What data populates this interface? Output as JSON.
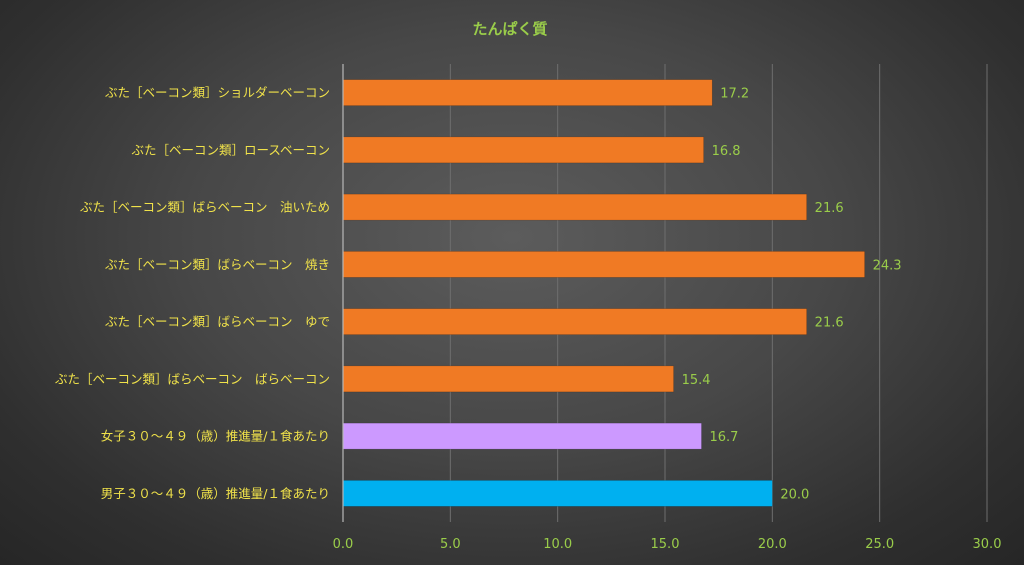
{
  "chart_data": {
    "type": "bar",
    "orientation": "horizontal",
    "title": "たんぱく質",
    "categories": [
      "ぶた［ベーコン類］ショルダーベーコン",
      "ぶた［ベーコン類］ロースベーコン",
      "ぶた［ベーコン類］ばらベーコン　油いため",
      "ぶた［ベーコン類］ばらベーコン　焼き",
      "ぶた［ベーコン類］ばらベーコン　ゆで",
      "ぶた［ベーコン類］ばらベーコン　ばらベーコン",
      "女子３０～４９（歳）推進量/１食あたり",
      "男子３０～４９（歳）推進量/１食あたり"
    ],
    "values": [
      17.2,
      16.8,
      21.6,
      24.3,
      21.6,
      15.4,
      16.7,
      20.0
    ],
    "value_labels": [
      "17.2",
      "16.8",
      "21.6",
      "24.3",
      "21.6",
      "15.4",
      "16.7",
      "20.0"
    ],
    "bar_colors": [
      "#f07a24",
      "#f07a24",
      "#f07a24",
      "#f07a24",
      "#f07a24",
      "#f07a24",
      "#cc99ff",
      "#00b0f0"
    ],
    "xlim": [
      0,
      30
    ],
    "xticks": [
      0,
      5,
      10,
      15,
      20,
      25,
      30
    ],
    "xtick_labels": [
      "0.0",
      "5.0",
      "10.0",
      "15.0",
      "20.0",
      "25.0",
      "30.0"
    ],
    "xlabel": "",
    "ylabel": "",
    "grid": "vertical",
    "legend": "none",
    "colors": {
      "title": "#9acd4a",
      "category_label": "#f0e24a",
      "value_label": "#9acd4a",
      "tick_label": "#9acd4a",
      "gridline": "#6e6e6e",
      "axis": "#b8b8b8"
    }
  }
}
